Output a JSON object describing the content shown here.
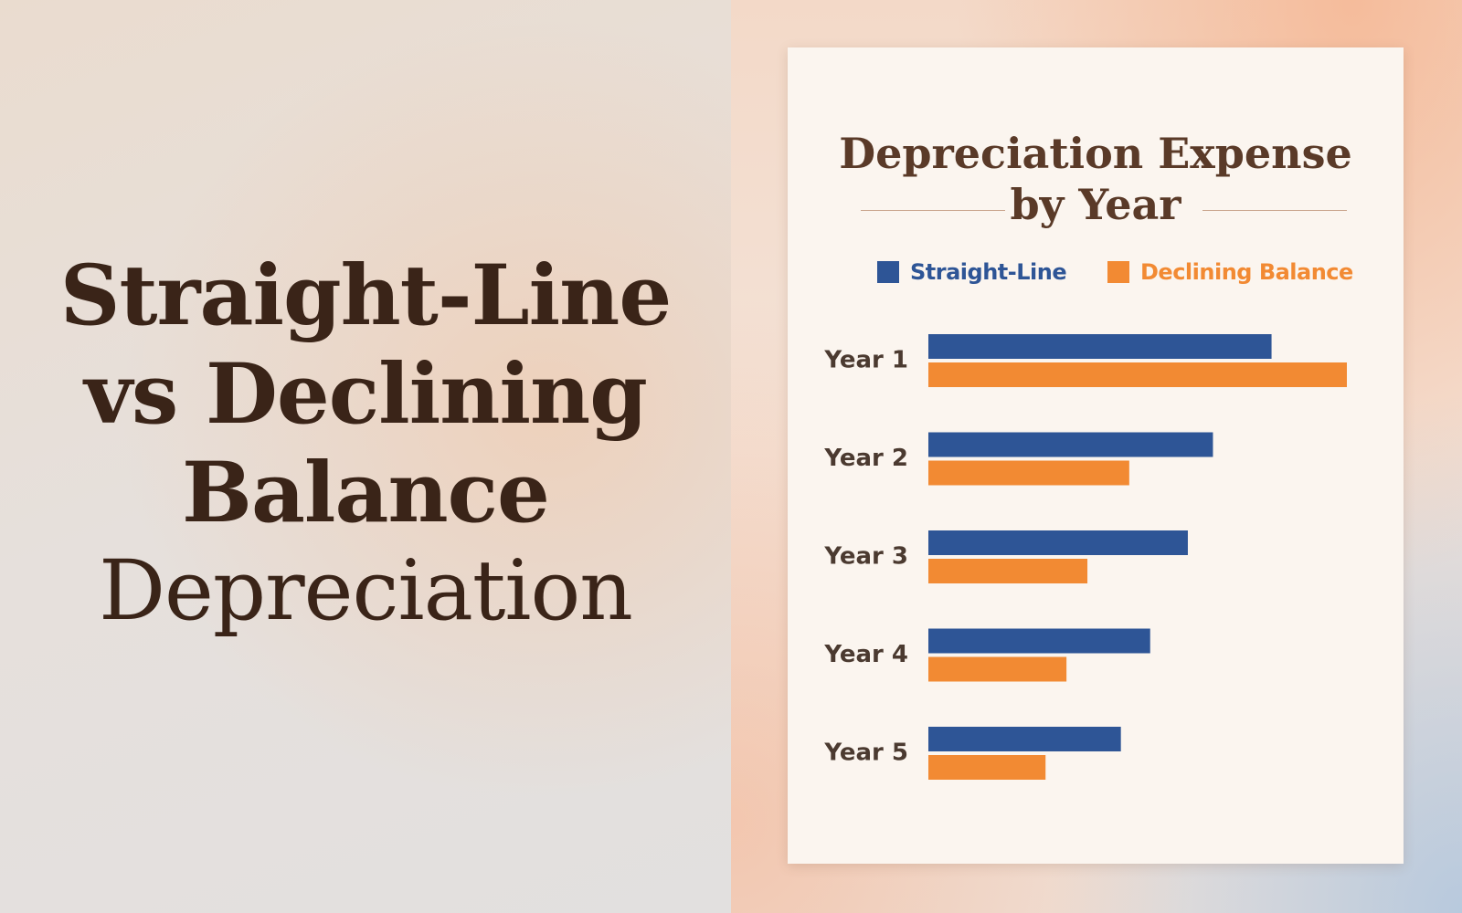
{
  "headline": {
    "line1": "Straight-Line",
    "line2": "vs Declining",
    "line3": "Balance",
    "line4": "Depreciation"
  },
  "colors": {
    "straight_line": "#2e5596",
    "declining_balance": "#f28a33",
    "title_text": "#5a3a28",
    "headline_text": "#3a2418",
    "year_label": "#4b3a30"
  },
  "chart_data": {
    "type": "bar",
    "orientation": "horizontal",
    "title_line1": "Depreciation Expense",
    "title_line2": "by Year",
    "categories": [
      "Year 1",
      "Year 2",
      "Year 3",
      "Year 4",
      "Year 5"
    ],
    "series": [
      {
        "name": "Straight-Line",
        "values": [
          82,
          68,
          62,
          53,
          46
        ]
      },
      {
        "name": "Declining Balance",
        "values": [
          100,
          48,
          38,
          33,
          28
        ]
      }
    ],
    "xlim": [
      0,
      100
    ],
    "grid": false,
    "legend_position": "top"
  }
}
